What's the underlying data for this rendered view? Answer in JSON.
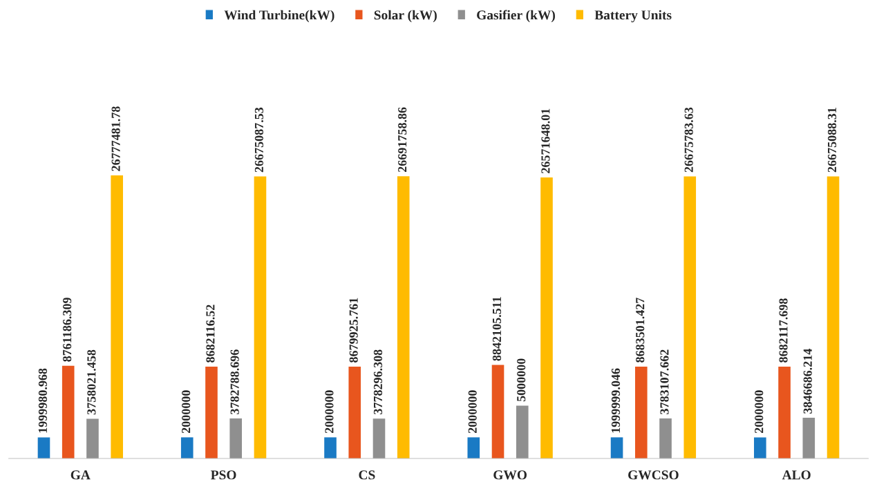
{
  "chart_data": {
    "type": "bar",
    "categories": [
      "GA",
      "PSO",
      "CS",
      "GWO",
      "GWCSO",
      "ALO"
    ],
    "series": [
      {
        "name": "Wind Turbine(kW)",
        "color": "#1a7ac4",
        "values": [
          1999980.968,
          2000000,
          2000000,
          2000000,
          1999999.046,
          2000000
        ]
      },
      {
        "name": "Solar (kW)",
        "color": "#e8561e",
        "values": [
          8761186.309,
          8682116.52,
          8679925.761,
          8842105.511,
          8683501.427,
          8682117.698
        ]
      },
      {
        "name": "Gasifier (kW)",
        "color": "#8f8f8f",
        "values": [
          3758021.458,
          3782788.696,
          3778296.308,
          5000000,
          3783107.662,
          3846686.214
        ]
      },
      {
        "name": "Battery Units",
        "color": "#ffbb00",
        "values": [
          26777481.78,
          26675087.53,
          26691758.86,
          26571648.01,
          26675783.63,
          26675088.31
        ]
      }
    ],
    "data_labels": true,
    "legend": "top",
    "grid": false
  }
}
